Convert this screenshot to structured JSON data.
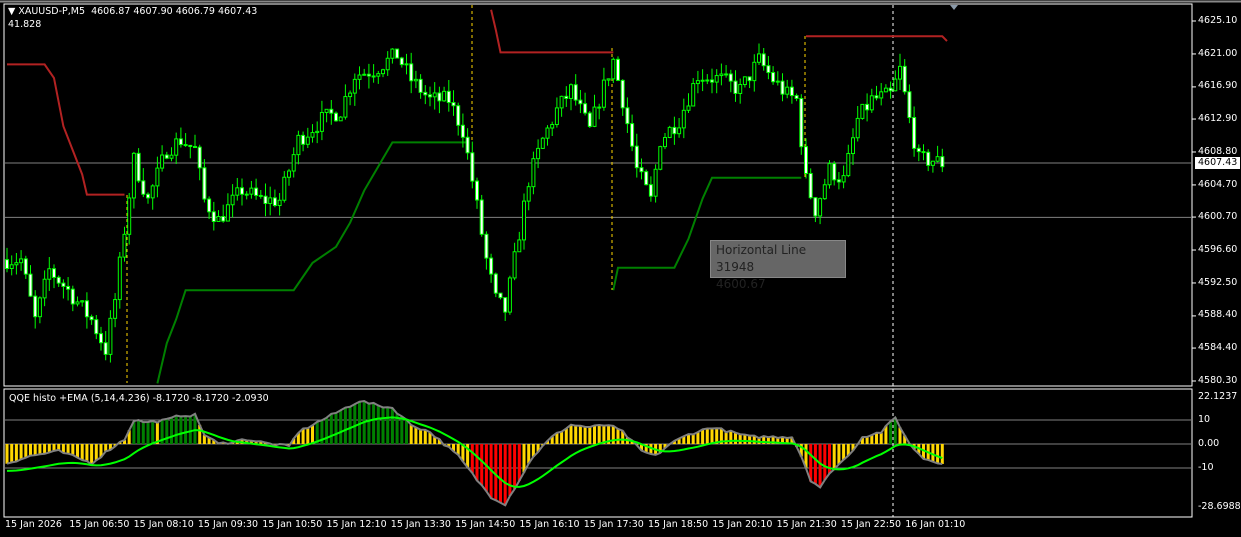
{
  "header": {
    "symbol": "XAUUSD-P,M5",
    "ohlc": "4606.87 4607.90 4606.79 4607.43",
    "sub_value": "41.828"
  },
  "price_axis": [
    "4625.10",
    "4621.00",
    "4616.90",
    "4612.90",
    "4608.80",
    "4604.70",
    "4600.70",
    "4596.60",
    "4592.50",
    "4588.40",
    "4584.40",
    "4580.30"
  ],
  "price_axis_values": [
    4625.1,
    4621.0,
    4616.9,
    4612.9,
    4608.8,
    4604.7,
    4600.7,
    4596.6,
    4592.5,
    4588.4,
    4584.4,
    4580.3
  ],
  "current_price": "4607.43",
  "current_price_value": 4607.43,
  "horizontal_line": {
    "label": "Horizontal Line 31948",
    "value": "4600.67",
    "price": 4600.67
  },
  "indicator": {
    "title": "QQE histo +EMA (5,14,4.236) -8.1720 -8.1720 -2.0930",
    "axis": [
      "22.1237",
      "10",
      "0.00",
      "-10",
      "-28.6988"
    ],
    "levels": [
      10,
      0,
      -10
    ],
    "range": [
      -28.6988,
      22.1237
    ],
    "histogram_keypoints": [
      [
        0,
        -8
      ],
      [
        5,
        -5
      ],
      [
        11,
        -3
      ],
      [
        18,
        -8
      ],
      [
        22,
        -2
      ],
      [
        25,
        2
      ],
      [
        27,
        10
      ],
      [
        30,
        9
      ],
      [
        34,
        10
      ],
      [
        37,
        12
      ],
      [
        40,
        12
      ],
      [
        42,
        4
      ],
      [
        45,
        0
      ],
      [
        51,
        2
      ],
      [
        56,
        0
      ],
      [
        60,
        -1
      ],
      [
        62,
        5
      ],
      [
        67,
        10
      ],
      [
        71,
        14
      ],
      [
        75,
        18
      ],
      [
        79,
        16
      ],
      [
        82,
        15
      ],
      [
        86,
        8
      ],
      [
        90,
        5
      ],
      [
        93,
        0
      ],
      [
        96,
        -5
      ],
      [
        100,
        -15
      ],
      [
        103,
        -22
      ],
      [
        106,
        -25
      ],
      [
        109,
        -15
      ],
      [
        112,
        -5
      ],
      [
        116,
        3
      ],
      [
        120,
        8
      ],
      [
        124,
        7
      ],
      [
        128,
        8
      ],
      [
        131,
        5
      ],
      [
        135,
        -3
      ],
      [
        138,
        -5
      ],
      [
        141,
        0
      ],
      [
        145,
        4
      ],
      [
        150,
        7
      ],
      [
        154,
        5
      ],
      [
        158,
        3
      ],
      [
        162,
        3
      ],
      [
        167,
        3
      ],
      [
        169,
        -5
      ],
      [
        171,
        -15
      ],
      [
        173,
        -18
      ],
      [
        176,
        -10
      ],
      [
        179,
        -5
      ],
      [
        182,
        3
      ],
      [
        186,
        5
      ],
      [
        189,
        11
      ],
      [
        192,
        0
      ],
      [
        195,
        -6
      ],
      [
        199,
        -8
      ]
    ],
    "colors": {
      "up": "#008000",
      "neutral": "#FFD700",
      "down": "#FF0000",
      "line": "#808080",
      "signal": "#00FF00"
    }
  },
  "price_keypoints": [
    [
      0,
      4595.4
    ],
    [
      3,
      4595.4
    ],
    [
      6,
      4587.9
    ],
    [
      9,
      4594.1
    ],
    [
      13,
      4591.6
    ],
    [
      18,
      4587.9
    ],
    [
      21,
      4584.2
    ],
    [
      23,
      4590.4
    ],
    [
      25,
      4599.1
    ],
    [
      27,
      4607.8
    ],
    [
      30,
      4602.8
    ],
    [
      34,
      4609.1
    ],
    [
      37,
      4610.3
    ],
    [
      40,
      4609.1
    ],
    [
      42,
      4602.8
    ],
    [
      45,
      4600.3
    ],
    [
      50,
      4604.1
    ],
    [
      54,
      4602.8
    ],
    [
      58,
      4602.8
    ],
    [
      62,
      4610.3
    ],
    [
      67,
      4612.8
    ],
    [
      71,
      4614.0
    ],
    [
      74,
      4618.4
    ],
    [
      78,
      4619.0
    ],
    [
      83,
      4620.9
    ],
    [
      86,
      4617.8
    ],
    [
      90,
      4615.3
    ],
    [
      94,
      4615.3
    ],
    [
      97,
      4611.5
    ],
    [
      99,
      4605.3
    ],
    [
      102,
      4595.4
    ],
    [
      104,
      4590.4
    ],
    [
      106,
      4589.1
    ],
    [
      108,
      4595.4
    ],
    [
      111,
      4605.3
    ],
    [
      114,
      4610.3
    ],
    [
      117,
      4614.0
    ],
    [
      120,
      4616.5
    ],
    [
      124,
      4611.5
    ],
    [
      126,
      4615.3
    ],
    [
      129,
      4620.2
    ],
    [
      131,
      4615.3
    ],
    [
      134,
      4606.6
    ],
    [
      137,
      4602.8
    ],
    [
      139,
      4610.3
    ],
    [
      143,
      4612.8
    ],
    [
      147,
      4618.4
    ],
    [
      152,
      4617.8
    ],
    [
      156,
      4616.5
    ],
    [
      160,
      4620.2
    ],
    [
      163,
      4617.8
    ],
    [
      166,
      4615.9
    ],
    [
      168,
      4615.3
    ],
    [
      170,
      4605.3
    ],
    [
      172,
      4601.6
    ],
    [
      175,
      4606.6
    ],
    [
      178,
      4605.3
    ],
    [
      181,
      4612.8
    ],
    [
      184,
      4615.3
    ],
    [
      188,
      4615.9
    ],
    [
      190,
      4619.0
    ],
    [
      192,
      4612.8
    ],
    [
      194,
      4607.8
    ],
    [
      197,
      4607.8
    ],
    [
      199,
      4607.4
    ]
  ],
  "stop_lines": {
    "red": [
      [
        [
          0,
          4619.7
        ],
        [
          8,
          4619.7
        ],
        [
          10,
          4618.0
        ],
        [
          12,
          4612.0
        ],
        [
          16,
          4606.0
        ],
        [
          17,
          4603.5
        ],
        [
          25,
          4603.5
        ]
      ],
      [
        [
          103,
          4626.5
        ],
        [
          104,
          4624.0
        ],
        [
          105,
          4621.2
        ],
        [
          129,
          4621.2
        ]
      ],
      [
        [
          170,
          4623.2
        ],
        [
          199,
          4623.2
        ],
        [
          200,
          4622.6
        ]
      ]
    ],
    "green": [
      [
        [
          32,
          4580.0
        ],
        [
          34,
          4585.0
        ],
        [
          36,
          4588.0
        ],
        [
          38,
          4591.6
        ],
        [
          61,
          4591.6
        ],
        [
          65,
          4595.0
        ],
        [
          70,
          4597.0
        ],
        [
          73,
          4600.0
        ],
        [
          76,
          4604.0
        ],
        [
          80,
          4608.0
        ],
        [
          82,
          4610.0
        ],
        [
          98,
          4610.0
        ]
      ],
      [
        [
          129,
          4591.6
        ],
        [
          130,
          4594.4
        ],
        [
          142,
          4594.4
        ],
        [
          145,
          4598.0
        ],
        [
          148,
          4603.0
        ],
        [
          150,
          4605.6
        ],
        [
          169,
          4605.6
        ]
      ]
    ],
    "colors": {
      "red": "#B22222",
      "green": "#008000"
    }
  },
  "time_axis": [
    "15 Jan 2026",
    "15 Jan 06:50",
    "15 Jan 08:10",
    "15 Jan 09:30",
    "15 Jan 10:50",
    "15 Jan 12:10",
    "15 Jan 13:30",
    "15 Jan 14:50",
    "15 Jan 16:10",
    "15 Jan 17:30",
    "15 Jan 18:50",
    "15 Jan 20:10",
    "15 Jan 21:30",
    "15 Jan 22:50",
    "16 Jan 01:10"
  ],
  "colors": {
    "candle": "#00FF00",
    "bull_body": "#000000",
    "bear_body": "#FFFFFF",
    "grid_line": "#808080",
    "background": "#000000"
  }
}
